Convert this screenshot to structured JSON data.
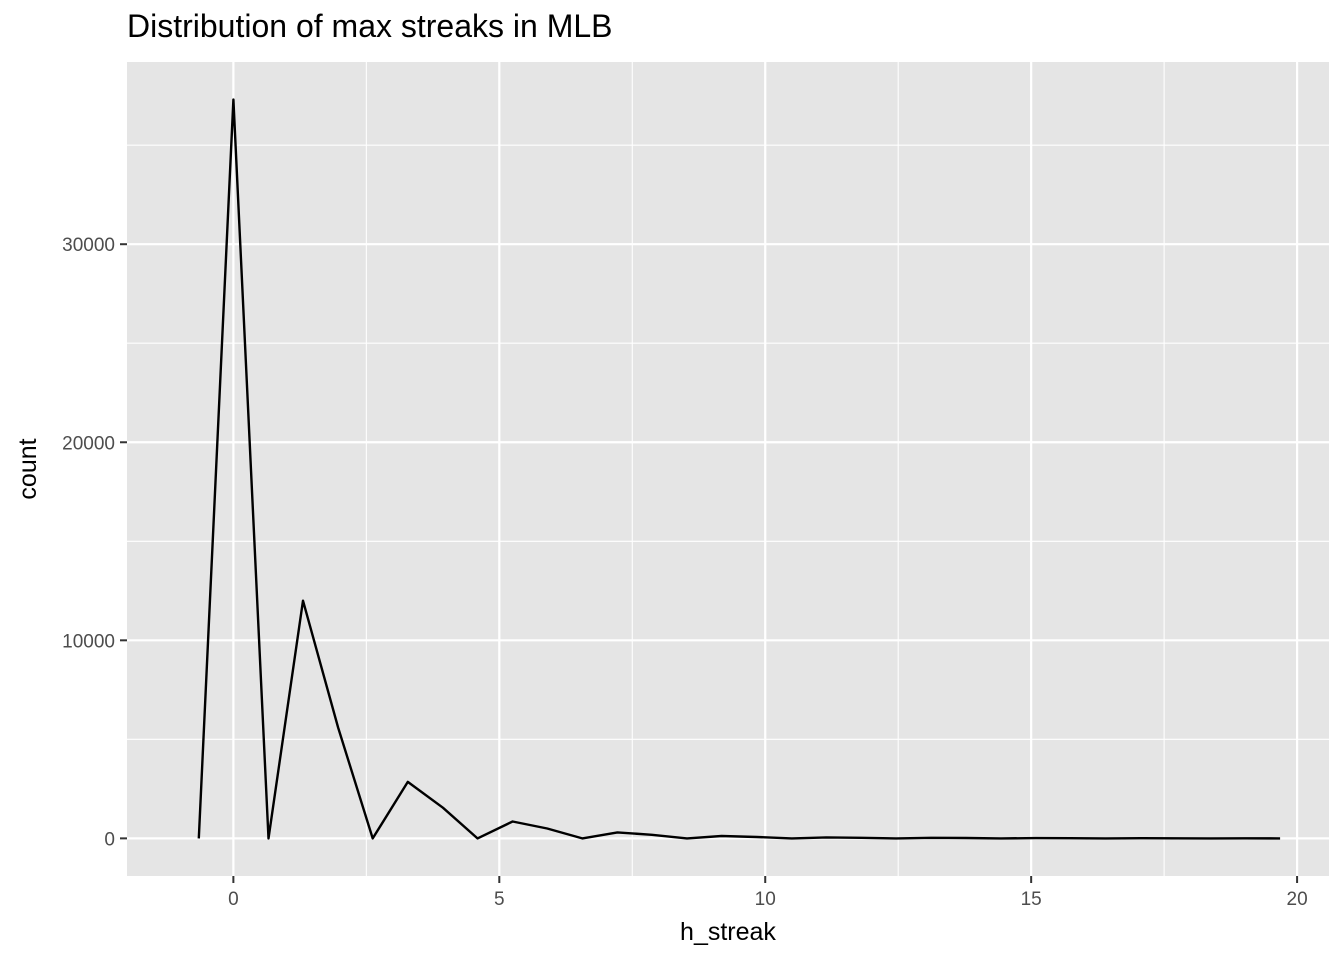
{
  "chart_data": {
    "type": "line",
    "title": "Distribution of max streaks in MLB",
    "xlabel": "h_streak",
    "ylabel": "count",
    "xlim": [
      -2.0,
      20.6
    ],
    "ylim": [
      -1900,
      39200
    ],
    "x_ticks": [
      0,
      5,
      10,
      15,
      20
    ],
    "x_tick_labels": [
      "0",
      "5",
      "10",
      "15",
      "20"
    ],
    "y_ticks": [
      0,
      10000,
      20000,
      30000
    ],
    "y_tick_labels": [
      "0",
      "10000",
      "20000",
      "30000"
    ],
    "grid": true,
    "panel_background": "#e5e5e5",
    "grid_color": "#ffffff",
    "line_color": "#000000",
    "series": [
      {
        "x": [
          -0.65,
          0.0,
          0.66,
          1.31,
          1.97,
          2.62,
          3.28,
          3.94,
          4.59,
          5.25,
          5.9,
          6.56,
          7.22,
          7.87,
          8.53,
          9.18,
          9.84,
          10.5,
          11.15,
          11.81,
          12.46,
          13.12,
          13.78,
          14.43,
          15.09,
          15.74,
          16.4,
          17.06,
          17.71,
          18.37,
          19.02,
          19.68
        ],
        "y": [
          0,
          37300,
          0,
          12000,
          5600,
          0,
          2850,
          1550,
          0,
          850,
          500,
          0,
          300,
          180,
          0,
          120,
          70,
          0,
          50,
          30,
          0,
          30,
          20,
          0,
          15,
          10,
          0,
          8,
          5,
          0,
          3,
          0
        ]
      }
    ]
  }
}
